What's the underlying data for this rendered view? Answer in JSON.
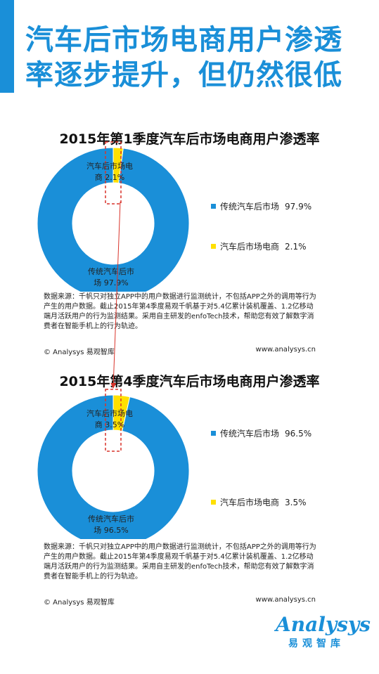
{
  "headline": {
    "line1": "汽车后市场电商用户渗透",
    "line2": "率逐步提升，但仍然很低"
  },
  "colors": {
    "accent": "#1a8fd8",
    "donut_main": "#1a8fd8",
    "donut_minor": "#ffe000",
    "highlight": "#d9342b"
  },
  "watermark": "易观智库",
  "chart_data": [
    {
      "type": "pie",
      "title": "2015年第1季度汽车后市场电商用户渗透率",
      "categories": [
        "传统汽车后市场",
        "汽车后市场电商"
      ],
      "values": [
        97.9,
        2.1
      ],
      "value_labels": [
        "97.9%",
        "2.1%"
      ],
      "inner_labels": [
        [
          "传统汽车后市",
          "场   97.9%"
        ],
        [
          "汽车后市场电",
          "商   2.1%"
        ]
      ],
      "donut": true,
      "legend": "right"
    },
    {
      "type": "pie",
      "title": "2015年第4季度汽车后市场电商用户渗透率",
      "categories": [
        "传统汽车后市场",
        "汽车后市场电商"
      ],
      "values": [
        96.5,
        3.5
      ],
      "value_labels": [
        "96.5%",
        "3.5%"
      ],
      "inner_labels": [
        [
          "传统汽车后市",
          "场   96.5%"
        ],
        [
          "汽车后市场电",
          "商   3.5%"
        ]
      ],
      "donut": true,
      "legend": "right"
    }
  ],
  "source_note": "数据来源：千帆只对独立APP中的用户数据进行监测统计，不包括APP之外的调用等行为产生的用户数据。截止2015年第4季度易观千帆基于对5.4亿累计装机覆盖、1.2亿移动端月活跃用户的行为监测结果。采用自主研发的enfoTech技术，帮助您有效了解数字消费者在智能手机上的行为轨迹。",
  "footer": {
    "copyright": "© Analysys 易观智库",
    "url": "www.analysys.cn"
  },
  "logo": {
    "word": "Analysys",
    "cn": "易观智库"
  }
}
